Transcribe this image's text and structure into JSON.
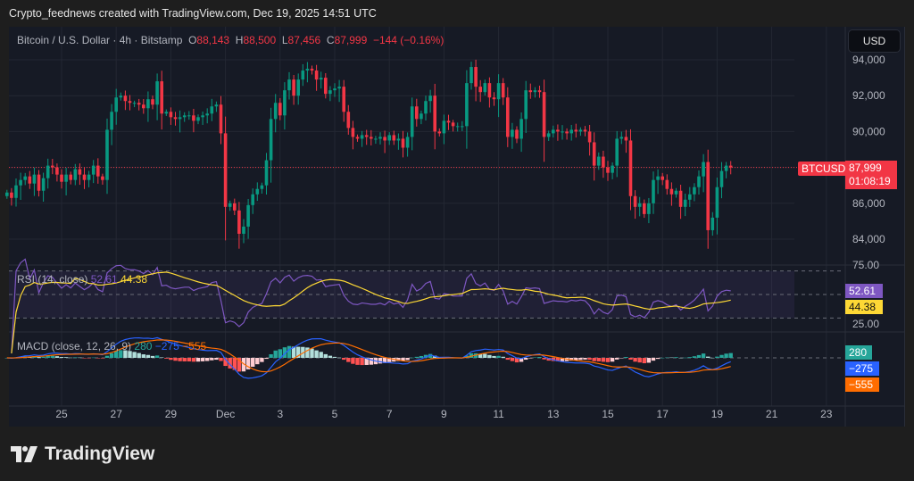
{
  "header": {
    "caption": "Crypto_feednews created with TradingView.com, Dec 19, 2025 14:51 UTC"
  },
  "legend": {
    "symbol_desc": "Bitcoin / U.S. Dollar · 4h · Bitstamp",
    "o_label": "O",
    "o": "88,143",
    "h_label": "H",
    "h": "88,500",
    "l_label": "L",
    "l": "87,456",
    "c_label": "C",
    "c": "87,999",
    "change": "−144 (−0.16%)"
  },
  "currency_button": "USD",
  "price_tag": {
    "symbol": "BTCUSD",
    "price": "87,999",
    "countdown": "01:08:19"
  },
  "rsi": {
    "title": "RSI (14, close)",
    "value": "52.61",
    "ma_value": "44.38",
    "axis": [
      "75.00",
      "25.00"
    ]
  },
  "macd": {
    "title": "MACD (close, 12, 26, 9)",
    "hist": "280",
    "macd": "−275",
    "signal": "−555"
  },
  "colors": {
    "up": "#089981",
    "down": "#f23645",
    "rsi": "#7e57c2",
    "rsi_ma": "#fdd835",
    "macd": "#2962ff",
    "signal": "#ff6d00",
    "bg": "#161a25"
  },
  "footer": {
    "brand": "TradingView"
  },
  "chart_data": {
    "type": "candlestick",
    "symbol": "BTCUSD",
    "interval": "4h",
    "exchange": "Bitstamp",
    "y_ticks": [
      "94,000",
      "92,000",
      "90,000",
      "86,000",
      "84,000"
    ],
    "x_ticks": [
      "25",
      "27",
      "29",
      "Dec",
      "3",
      "5",
      "7",
      "9",
      "11",
      "13",
      "15",
      "17",
      "19",
      "21",
      "23"
    ],
    "ylim": [
      83000,
      95000
    ],
    "closes": [
      86600,
      86300,
      87000,
      87300,
      87500,
      87100,
      87600,
      86700,
      87400,
      88100,
      88000,
      87600,
      87200,
      87600,
      87300,
      87900,
      87600,
      87300,
      87600,
      88100,
      87500,
      87300,
      90100,
      91100,
      91900,
      92000,
      91700,
      91600,
      91600,
      91500,
      91300,
      91800,
      91500,
      92800,
      91000,
      91100,
      90800,
      90700,
      90800,
      90900,
      90900,
      90600,
      90800,
      90900,
      91000,
      91400,
      91500,
      89900,
      85800,
      86000,
      85600,
      84300,
      84700,
      85900,
      86500,
      86800,
      87000,
      88400,
      90700,
      91600,
      90900,
      92300,
      92900,
      92000,
      92900,
      93400,
      93500,
      93400,
      92900,
      93000,
      92100,
      92300,
      92400,
      92500,
      91100,
      90200,
      89700,
      89600,
      89800,
      89700,
      89600,
      89600,
      89700,
      89500,
      89800,
      89500,
      89600,
      89100,
      89700,
      91400,
      90700,
      91000,
      91700,
      92000,
      90000,
      89900,
      90600,
      90500,
      90300,
      90300,
      90300,
      92700,
      93600,
      92500,
      92200,
      92700,
      91900,
      91800,
      92700,
      91900,
      89700,
      90100,
      89600,
      90700,
      92300,
      92200,
      92300,
      92200,
      89700,
      89900,
      90100,
      90000,
      90000,
      89900,
      90100,
      90000,
      90100,
      90000,
      89400,
      88100,
      88600,
      88000,
      87700,
      88100,
      89600,
      89700,
      89500,
      86400,
      85800,
      86000,
      85400,
      86000,
      87300,
      87500,
      87300,
      86800,
      86500,
      86700,
      85800,
      86200,
      86500,
      86900,
      87500,
      88300,
      84500,
      85200,
      86900,
      87800,
      88100,
      87999
    ]
  }
}
